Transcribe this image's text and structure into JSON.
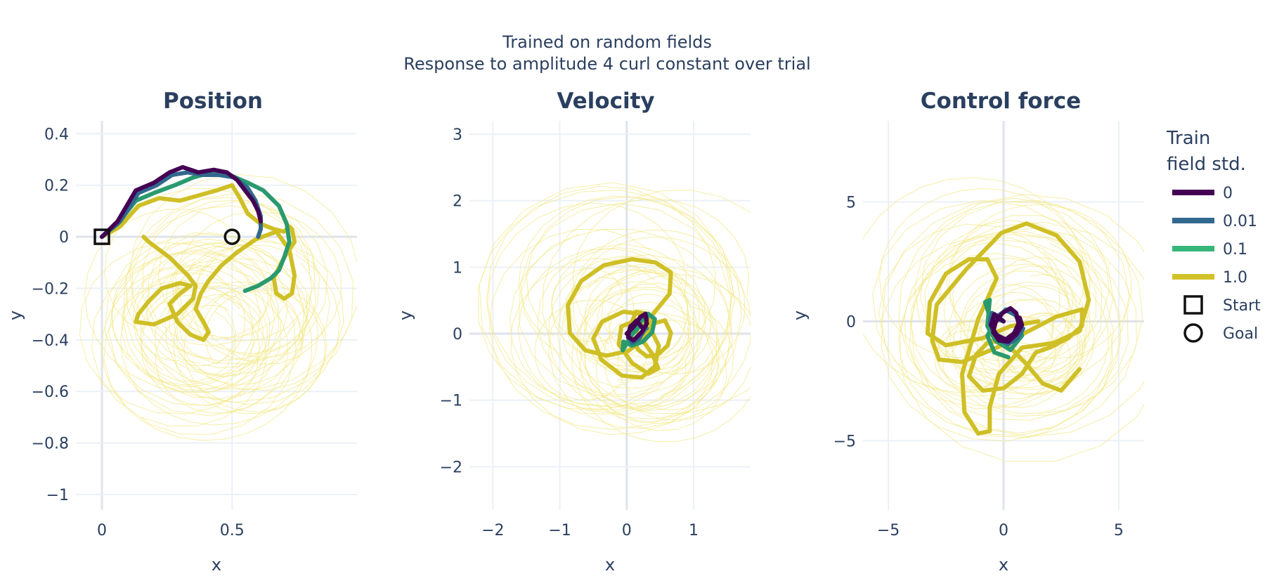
{
  "figure": {
    "title_line1": "Trained on random fields",
    "title_line2": "Response to amplitude 4 curl constant over trial"
  },
  "legend": {
    "title_line1": "Train",
    "title_line2": "field std.",
    "items": [
      {
        "label": "0",
        "color": "#440154",
        "kind": "line"
      },
      {
        "label": "0.01",
        "color": "#31688e",
        "kind": "line"
      },
      {
        "label": "0.1",
        "color": "#35b779",
        "kind": "line"
      },
      {
        "label": "1.0",
        "color": "#d2c22a",
        "kind": "line"
      },
      {
        "label": "Start",
        "color": "#111111",
        "kind": "square"
      },
      {
        "label": "Goal",
        "color": "#111111",
        "kind": "circle"
      }
    ]
  },
  "chart_data": [
    {
      "type": "line",
      "title": "Position",
      "xlabel": "x",
      "ylabel": "y",
      "xlim": [
        -0.1,
        0.98
      ],
      "ylim": [
        -1.06,
        0.45
      ],
      "xticks": [
        0,
        0.5
      ],
      "xtick_labels": [
        "0",
        "0.5"
      ],
      "yticks": [
        0.4,
        0.2,
        0,
        -0.2,
        -0.4,
        -0.6,
        -0.8,
        -1
      ],
      "ytick_labels": [
        "0.4",
        "0.2",
        "0",
        "−0.2",
        "−0.4",
        "−0.6",
        "−0.8",
        "−1"
      ],
      "grid": true,
      "markers": [
        {
          "label": "Start",
          "symbol": "square",
          "x": 0,
          "y": 0
        },
        {
          "label": "Goal",
          "symbol": "circle",
          "x": 0.5,
          "y": 0
        }
      ],
      "series": [
        {
          "name": "0",
          "color": "#440154",
          "x": [
            0,
            0.06,
            0.13,
            0.2,
            0.26,
            0.31,
            0.37,
            0.43,
            0.48,
            0.52,
            0.55,
            0.58,
            0.6,
            0.61
          ],
          "y": [
            0,
            0.06,
            0.18,
            0.21,
            0.25,
            0.27,
            0.25,
            0.26,
            0.25,
            0.22,
            0.18,
            0.14,
            0.1,
            0.06
          ]
        },
        {
          "name": "0.01",
          "color": "#31688e",
          "x": [
            0,
            0.07,
            0.14,
            0.21,
            0.27,
            0.33,
            0.39,
            0.45,
            0.51,
            0.56,
            0.59,
            0.61,
            0.61,
            0.6
          ],
          "y": [
            0,
            0.06,
            0.17,
            0.2,
            0.24,
            0.25,
            0.24,
            0.24,
            0.23,
            0.19,
            0.14,
            0.08,
            0.03,
            0
          ]
        },
        {
          "name": "0.1",
          "color": "#2a9a6e",
          "x": [
            0,
            0.06,
            0.13,
            0.2,
            0.28,
            0.35,
            0.42,
            0.49,
            0.56,
            0.62,
            0.68,
            0.71,
            0.72,
            0.7,
            0.68,
            0.65,
            0.6,
            0.55
          ],
          "y": [
            0,
            0.05,
            0.14,
            0.17,
            0.2,
            0.23,
            0.25,
            0.24,
            0.21,
            0.18,
            0.12,
            0.05,
            -0.02,
            -0.08,
            -0.13,
            -0.16,
            -0.19,
            -0.21
          ]
        },
        {
          "name": "1.0",
          "color": "#cfbf26",
          "x": [
            0,
            0.07,
            0.14,
            0.22,
            0.3,
            0.37,
            0.44,
            0.5,
            0.53,
            0.56,
            0.61,
            0.66,
            0.7,
            0.72,
            0.73,
            0.74,
            0.7,
            0.66,
            0.67,
            0.7,
            0.73,
            0.74,
            0.72,
            0.67,
            0.59,
            0.52,
            0.46,
            0.41,
            0.38,
            0.36,
            0.39,
            0.41,
            0.39,
            0.34,
            0.29,
            0.26,
            0.3,
            0.34,
            0.3,
            0.23,
            0.18,
            0.14,
            0.13,
            0.2,
            0.29,
            0.35,
            0.36,
            0.33,
            0.26,
            0.18,
            0.16
          ],
          "y": [
            0,
            0.04,
            0.12,
            0.15,
            0.14,
            0.16,
            0.18,
            0.2,
            0.15,
            0.09,
            0.05,
            0.03,
            0.02,
            0.04,
            0.03,
            -0.02,
            -0.08,
            -0.16,
            -0.22,
            -0.24,
            -0.22,
            -0.15,
            -0.05,
            0.02,
            -0.01,
            -0.06,
            -0.11,
            -0.17,
            -0.22,
            -0.28,
            -0.33,
            -0.37,
            -0.4,
            -0.38,
            -0.33,
            -0.26,
            -0.22,
            -0.19,
            -0.18,
            -0.2,
            -0.25,
            -0.3,
            -0.33,
            -0.34,
            -0.3,
            -0.24,
            -0.19,
            -0.15,
            -0.08,
            -0.02,
            0
          ]
        }
      ]
    },
    {
      "type": "line",
      "title": "Velocity",
      "xlabel": "x",
      "ylabel": "y",
      "xlim": [
        -2.35,
        1.85
      ],
      "ylim": [
        -2.65,
        3.2
      ],
      "xticks": [
        -2,
        -1,
        0,
        1
      ],
      "xtick_labels": [
        "−2",
        "−1",
        "0",
        "1"
      ],
      "yticks": [
        3,
        2,
        1,
        0,
        -1,
        -2
      ],
      "ytick_labels": [
        "3",
        "2",
        "1",
        "0",
        "−1",
        "−2"
      ],
      "grid": true,
      "series": [
        {
          "name": "0",
          "color": "#440154",
          "x": [
            0,
            0.1,
            0.2,
            0.28,
            0.3,
            0.22,
            0.1,
            0.02,
            0.05,
            0.15,
            0.22
          ],
          "y": [
            0,
            0.1,
            0.25,
            0.3,
            0.15,
            0.02,
            -0.1,
            -0.05,
            0.1,
            0.2,
            0.1
          ]
        },
        {
          "name": "0.01",
          "color": "#31688e",
          "x": [
            0,
            0.12,
            0.22,
            0.3,
            0.28,
            0.18,
            0.08,
            0.02,
            0.06,
            0.16
          ],
          "y": [
            0,
            0.12,
            0.26,
            0.24,
            0.08,
            -0.08,
            -0.14,
            -0.02,
            0.12,
            0.16
          ]
        },
        {
          "name": "0.1",
          "color": "#2a9a6e",
          "x": [
            0,
            0.18,
            0.32,
            0.42,
            0.38,
            0.24,
            0.08,
            -0.05,
            -0.06,
            0.05,
            0.2,
            0.3
          ],
          "y": [
            0,
            0.15,
            0.3,
            0.22,
            0.02,
            -0.12,
            -0.18,
            -0.12,
            -0.25,
            -0.05,
            0.12,
            0.08
          ]
        },
        {
          "name": "1.0",
          "color": "#cfbf26",
          "x": [
            0,
            0.38,
            0.64,
            0.66,
            0.43,
            0.08,
            -0.34,
            -0.68,
            -0.88,
            -0.85,
            -0.62,
            -0.3,
            0.02,
            0.26,
            0.37,
            0.25,
            -0.05,
            -0.37,
            -0.5,
            -0.38,
            -0.07,
            0.22,
            0.42,
            0.48,
            0.36,
            0.14,
            -0.08,
            -0.12,
            0.08,
            0.32,
            0.47,
            0.38,
            0.2,
            0.08,
            0.14,
            0.3,
            0.42,
            0.57,
            0.66,
            0.61,
            0.46,
            0.3,
            0.17,
            0.1,
            0.04
          ],
          "y": [
            0,
            0.28,
            0.6,
            0.92,
            1.07,
            1.12,
            1.03,
            0.79,
            0.43,
            0.01,
            -0.25,
            -0.33,
            -0.26,
            -0.08,
            0.12,
            0.29,
            0.33,
            0.18,
            -0.07,
            -0.39,
            -0.63,
            -0.66,
            -0.49,
            -0.18,
            0.06,
            0.19,
            0.11,
            -0.16,
            -0.44,
            -0.6,
            -0.52,
            -0.3,
            -0.05,
            0.18,
            0.33,
            0.3,
            0.16,
            0.2,
            0.01,
            -0.18,
            -0.32,
            -0.34,
            -0.24,
            -0.1,
            0
          ]
        }
      ]
    },
    {
      "type": "line",
      "title": "Control force",
      "xlabel": "x",
      "ylabel": "y",
      "xlim": [
        -6.1,
        6.1
      ],
      "ylim": [
        -7.9,
        8.4
      ],
      "xticks": [
        -5,
        0,
        5
      ],
      "xtick_labels": [
        "−5",
        "0",
        "5"
      ],
      "yticks": [
        5,
        0,
        -5
      ],
      "ytick_labels": [
        "5",
        "0",
        "−5"
      ],
      "grid": true,
      "series": [
        {
          "name": "0",
          "color": "#440154",
          "x": [
            0,
            -0.4,
            -0.55,
            -0.3,
            0.1,
            0.45,
            0.65,
            0.55,
            0.3,
            -0.05,
            -0.35,
            -0.45,
            -0.2,
            0.2,
            0.55,
            0.8,
            0.7
          ],
          "y": [
            0,
            0.3,
            -0.15,
            -0.6,
            -0.75,
            -0.5,
            -0.1,
            0.35,
            0.55,
            0.35,
            -0.05,
            -0.45,
            -0.8,
            -0.85,
            -0.55,
            -0.15,
            0.15
          ]
        },
        {
          "name": "0.01",
          "color": "#31688e",
          "x": [
            0,
            -0.5,
            -0.6,
            -0.3,
            0.15,
            0.5,
            0.7,
            0.5,
            0.1,
            -0.3,
            -0.5,
            -0.25,
            0.2,
            0.6,
            0.85
          ],
          "y": [
            0,
            0.35,
            -0.1,
            -0.55,
            -0.8,
            -0.55,
            -0.1,
            0.3,
            0.45,
            0.2,
            -0.3,
            -0.75,
            -0.95,
            -0.7,
            -0.3
          ]
        },
        {
          "name": "0.1",
          "color": "#2a9a6e",
          "x": [
            0,
            -0.6,
            -0.8,
            -0.6,
            -0.7,
            -0.35,
            0.3,
            0.8,
            0.6,
            0.1,
            -0.3,
            -0.7,
            -0.4,
            0.2
          ],
          "y": [
            0,
            0.2,
            0.8,
            0.9,
            -0.2,
            -0.8,
            -1.2,
            -0.6,
            0.2,
            0.5,
            0.1,
            -0.6,
            -1.3,
            -1.5
          ]
        },
        {
          "name": "1.0",
          "color": "#cfbf26",
          "x": [
            1.5,
            0.3,
            -0.9,
            -2.5,
            -3.3,
            -3.2,
            -2.5,
            -1.5,
            -0.7,
            -0.3,
            -1.1,
            -1.8,
            -1.7,
            -1.1,
            -0.6,
            -0.6,
            -0.2,
            0.8,
            2.2,
            3.3,
            3.7,
            3.3,
            2.3,
            1.0,
            -0.1,
            -1.6,
            -2.9,
            -3.1,
            -2.8,
            -1.8,
            -0.3,
            1.1,
            2.3,
            3.4,
            3.4,
            2.8,
            2.0,
            1.4,
            1.2,
            0.8,
            0.0,
            -0.9,
            -1.5,
            -1.2,
            -0.6,
            0.2,
            1.0,
            1.7,
            2.5,
            3.3
          ],
          "y": [
            0,
            -0.2,
            -0.7,
            -1.0,
            -0.5,
            0.8,
            2.0,
            2.6,
            2.6,
            1.8,
            0.1,
            -2.2,
            -3.8,
            -4.7,
            -4.6,
            -3.6,
            -2.2,
            -1.1,
            -0.9,
            -0.4,
            0.9,
            2.5,
            3.6,
            4.1,
            3.7,
            2.2,
            0.7,
            -0.8,
            -1.6,
            -1.7,
            -1.1,
            -0.4,
            0.2,
            0.5,
            -0.2,
            -0.7,
            -1.1,
            -1.3,
            -1.6,
            -2.2,
            -2.8,
            -2.9,
            -2.3,
            -1.4,
            -0.8,
            -1.0,
            -1.8,
            -2.6,
            -2.9,
            -2.0
          ]
        }
      ]
    }
  ]
}
